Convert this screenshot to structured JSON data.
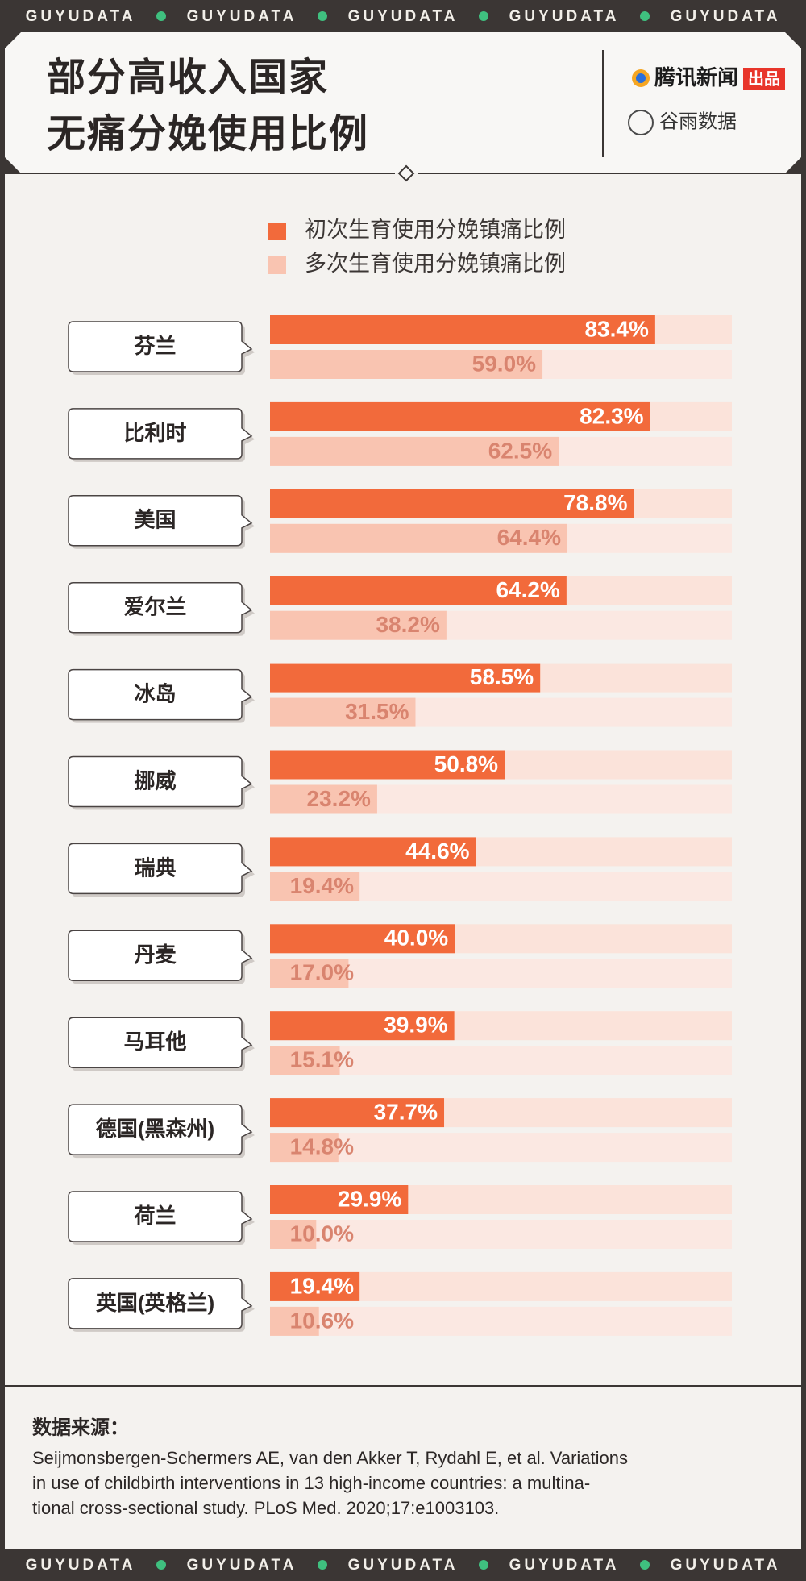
{
  "brand": "GUYUDATA",
  "logos": {
    "tencent": "腾讯新闻",
    "produced": "出品",
    "guyu": "谷雨数据"
  },
  "chart_data": {
    "type": "bar",
    "orientation": "horizontal",
    "title": "部分高收入国家\n无痛分娩使用比例",
    "categories": [
      "芬兰",
      "比利时",
      "美国",
      "爱尔兰",
      "冰岛",
      "挪威",
      "瑞典",
      "丹麦",
      "马耳他",
      "德国(黑森州)",
      "荷兰",
      "英国(英格兰)"
    ],
    "xlim": [
      0,
      100
    ],
    "series": [
      {
        "name": "初次生育使用分娩镇痛比例",
        "color": "#f26a3b",
        "values": [
          83.4,
          82.3,
          78.8,
          64.2,
          58.5,
          50.8,
          44.6,
          40.0,
          39.9,
          37.7,
          29.9,
          19.4
        ],
        "value_labels": [
          "83.4%",
          "82.3%",
          "78.8%",
          "64.2%",
          "58.5%",
          "50.8%",
          "44.6%",
          "40.0%",
          "39.9%",
          "37.7%",
          "29.9%",
          "19.4%"
        ]
      },
      {
        "name": "多次生育使用分娩镇痛比例",
        "color": "#f9c4b1",
        "values": [
          59.0,
          62.5,
          64.4,
          38.2,
          31.5,
          23.2,
          19.4,
          17.0,
          15.1,
          14.8,
          10.0,
          10.6
        ],
        "value_labels": [
          "59.0%",
          "62.5%",
          "64.4%",
          "38.2%",
          "31.5%",
          "23.2%",
          "19.4%",
          "17.0%",
          "15.1%",
          "14.8%",
          "10.0%",
          "10.6%"
        ]
      }
    ]
  },
  "source": {
    "heading": "数据来源：",
    "lines": [
      "Seijmonsbergen-Schermers AE, van den Akker T, Rydahl E, et al. Variations",
      "in use of childbirth interventions in 13 high-income countries: a multina-",
      "tional cross-sectional study. PLoS Med. 2020;17:e1003103."
    ]
  }
}
